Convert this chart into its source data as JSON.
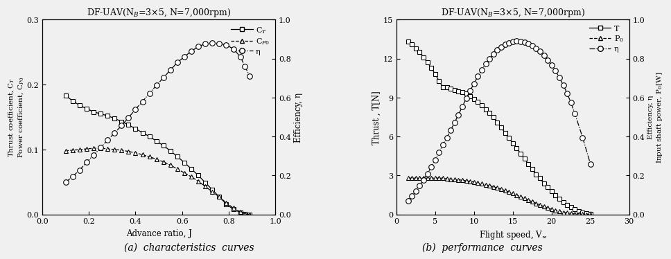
{
  "left": {
    "title": "DF-UAV(N$_B$=3×5, N=7,000rpm)",
    "xlabel": "Advance ratio, J",
    "ylabel_left": "Thrust coefficient, C$_T$\nPower coefficient, C$_{P0}$",
    "ylabel_right": "Efficiency, η",
    "xlim": [
      0,
      1
    ],
    "ylim_left": [
      0,
      0.3
    ],
    "ylim_right": [
      0,
      1
    ],
    "xticks": [
      0,
      0.2,
      0.4,
      0.6,
      0.8,
      1.0
    ],
    "yticks_left": [
      0,
      0.1,
      0.2,
      0.3
    ],
    "yticks_right": [
      0,
      0.2,
      0.4,
      0.6,
      0.8,
      1.0
    ],
    "CT_J": [
      0.1,
      0.13,
      0.16,
      0.19,
      0.22,
      0.25,
      0.28,
      0.31,
      0.34,
      0.37,
      0.4,
      0.43,
      0.46,
      0.49,
      0.52,
      0.55,
      0.58,
      0.61,
      0.64,
      0.67,
      0.7,
      0.73,
      0.76,
      0.79,
      0.82,
      0.85,
      0.87,
      0.89
    ],
    "CT_V": [
      0.183,
      0.175,
      0.168,
      0.163,
      0.158,
      0.155,
      0.152,
      0.148,
      0.143,
      0.138,
      0.132,
      0.126,
      0.12,
      0.113,
      0.106,
      0.098,
      0.089,
      0.08,
      0.07,
      0.06,
      0.049,
      0.038,
      0.027,
      0.016,
      0.008,
      0.003,
      0.001,
      0.0
    ],
    "CP_J": [
      0.1,
      0.13,
      0.16,
      0.19,
      0.22,
      0.25,
      0.28,
      0.31,
      0.34,
      0.37,
      0.4,
      0.43,
      0.46,
      0.49,
      0.52,
      0.55,
      0.58,
      0.61,
      0.64,
      0.67,
      0.7,
      0.73,
      0.76,
      0.79,
      0.82,
      0.85,
      0.87,
      0.89
    ],
    "CP_V": [
      0.098,
      0.099,
      0.1,
      0.101,
      0.102,
      0.102,
      0.101,
      0.1,
      0.099,
      0.097,
      0.095,
      0.092,
      0.089,
      0.085,
      0.081,
      0.076,
      0.07,
      0.064,
      0.058,
      0.051,
      0.043,
      0.035,
      0.027,
      0.018,
      0.01,
      0.004,
      0.001,
      0.0
    ],
    "eta_J": [
      0.1,
      0.13,
      0.16,
      0.19,
      0.22,
      0.25,
      0.28,
      0.31,
      0.34,
      0.37,
      0.4,
      0.43,
      0.46,
      0.49,
      0.52,
      0.55,
      0.58,
      0.61,
      0.64,
      0.67,
      0.7,
      0.73,
      0.76,
      0.79,
      0.82,
      0.85,
      0.87,
      0.89
    ],
    "eta_V": [
      0.165,
      0.195,
      0.228,
      0.268,
      0.305,
      0.342,
      0.382,
      0.418,
      0.456,
      0.497,
      0.54,
      0.58,
      0.622,
      0.663,
      0.702,
      0.742,
      0.78,
      0.81,
      0.838,
      0.862,
      0.876,
      0.88,
      0.878,
      0.87,
      0.85,
      0.81,
      0.76,
      0.71
    ],
    "legend": [
      "C$_T$",
      "C$_{P0}$",
      "η"
    ],
    "subtitle": "(a)  characteristics  curves"
  },
  "right": {
    "title": "DF-UAV(N$_B$=3×5, N=7,000rpm)",
    "xlabel": "Flight speed, V$_{\\infty}$",
    "ylabel_left": "Thrust , T[N]",
    "ylabel_right": "Efficiency, η\nInput shaft power, P$_0$[W]",
    "xlim": [
      0,
      30
    ],
    "ylim_left": [
      0,
      15
    ],
    "ylim_right": [
      0,
      1
    ],
    "xticks": [
      0,
      5,
      10,
      15,
      20,
      25,
      30
    ],
    "yticks_left": [
      0,
      3,
      6,
      9,
      12,
      15
    ],
    "yticks_right": [
      0,
      0.2,
      0.4,
      0.6,
      0.8,
      1.0
    ],
    "T_V": [
      1.5,
      2.0,
      2.5,
      3.0,
      3.5,
      4.0,
      4.5,
      5.0,
      5.5,
      6.0,
      6.5,
      7.0,
      7.5,
      8.0,
      8.5,
      9.0,
      9.5,
      10.0,
      10.5,
      11.0,
      11.5,
      12.0,
      12.5,
      13.0,
      13.5,
      14.0,
      14.5,
      15.0,
      15.5,
      16.0,
      16.5,
      17.0,
      17.5,
      18.0,
      18.5,
      19.0,
      19.5,
      20.0,
      20.5,
      21.0,
      21.5,
      22.0,
      22.5,
      23.0,
      23.5,
      24.0,
      24.5,
      25.0
    ],
    "T_N": [
      13.3,
      13.1,
      12.8,
      12.5,
      12.1,
      11.7,
      11.3,
      10.8,
      10.3,
      9.8,
      9.8,
      9.7,
      9.6,
      9.5,
      9.4,
      9.3,
      9.1,
      8.9,
      8.7,
      8.4,
      8.1,
      7.8,
      7.5,
      7.1,
      6.7,
      6.3,
      5.9,
      5.5,
      5.1,
      4.7,
      4.3,
      3.9,
      3.5,
      3.1,
      2.8,
      2.4,
      2.1,
      1.8,
      1.5,
      1.2,
      0.95,
      0.75,
      0.55,
      0.4,
      0.25,
      0.15,
      0.07,
      0.02
    ],
    "P0_V": [
      1.5,
      2.0,
      2.5,
      3.0,
      3.5,
      4.0,
      4.5,
      5.0,
      5.5,
      6.0,
      6.5,
      7.0,
      7.5,
      8.0,
      8.5,
      9.0,
      9.5,
      10.0,
      10.5,
      11.0,
      11.5,
      12.0,
      12.5,
      13.0,
      13.5,
      14.0,
      14.5,
      15.0,
      15.5,
      16.0,
      16.5,
      17.0,
      17.5,
      18.0,
      18.5,
      19.0,
      19.5,
      20.0,
      20.5,
      21.0,
      21.5,
      22.0,
      22.5,
      23.0,
      23.5,
      24.0,
      24.5,
      25.0
    ],
    "P0_N": [
      2.8,
      2.8,
      2.8,
      2.8,
      2.8,
      2.8,
      2.8,
      2.8,
      2.8,
      2.8,
      2.75,
      2.73,
      2.7,
      2.67,
      2.64,
      2.6,
      2.55,
      2.5,
      2.43,
      2.37,
      2.3,
      2.22,
      2.14,
      2.05,
      1.95,
      1.85,
      1.74,
      1.62,
      1.5,
      1.38,
      1.25,
      1.12,
      0.99,
      0.86,
      0.74,
      0.62,
      0.51,
      0.41,
      0.32,
      0.24,
      0.17,
      0.12,
      0.08,
      0.05,
      0.03,
      0.015,
      0.006,
      0.001
    ],
    "eta_V": [
      1.5,
      2.0,
      2.5,
      3.0,
      3.5,
      4.0,
      4.5,
      5.0,
      5.5,
      6.0,
      6.5,
      7.0,
      7.5,
      8.0,
      8.5,
      9.0,
      9.5,
      10.0,
      10.5,
      11.0,
      11.5,
      12.0,
      12.5,
      13.0,
      13.5,
      14.0,
      14.5,
      15.0,
      15.5,
      16.0,
      16.5,
      17.0,
      17.5,
      18.0,
      18.5,
      19.0,
      19.5,
      20.0,
      20.5,
      21.0,
      21.5,
      22.0,
      22.5,
      23.0,
      24.0,
      25.0
    ],
    "eta_N": [
      0.07,
      0.095,
      0.12,
      0.148,
      0.178,
      0.21,
      0.244,
      0.28,
      0.318,
      0.358,
      0.395,
      0.432,
      0.472,
      0.512,
      0.553,
      0.595,
      0.635,
      0.672,
      0.708,
      0.742,
      0.772,
      0.8,
      0.823,
      0.844,
      0.86,
      0.873,
      0.882,
      0.888,
      0.89,
      0.888,
      0.883,
      0.876,
      0.865,
      0.852,
      0.836,
      0.817,
      0.793,
      0.767,
      0.737,
      0.703,
      0.665,
      0.622,
      0.573,
      0.518,
      0.395,
      0.26
    ],
    "legend": [
      "T",
      "P$_0$",
      "η"
    ],
    "subtitle": "(b)  performance  curves"
  },
  "bg_color": "#f0f0f0",
  "markersize": 4.5
}
